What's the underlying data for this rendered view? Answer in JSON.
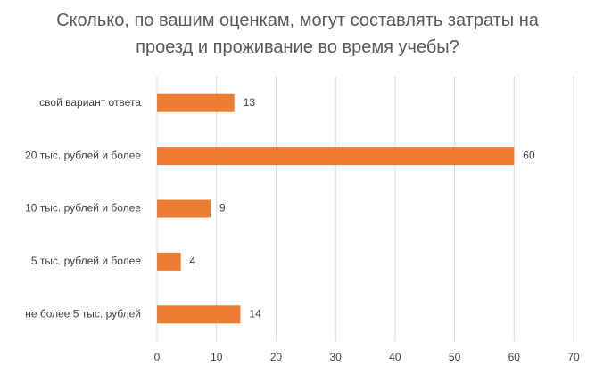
{
  "chart_data": {
    "type": "hbar",
    "title": "Сколько, по вашим оценкам, могут составлять затраты на проезд и проживание во время учебы?",
    "categories": [
      "свой вариант ответа",
      "20 тыс. рублей и более",
      "10 тыс. рублей и более",
      "5 тыс. рублей и более",
      "не более 5 тыс. рублей"
    ],
    "values": [
      13,
      60,
      9,
      4,
      14
    ],
    "color": "#ed7d31",
    "xlim": [
      0,
      70
    ],
    "xticks": [
      0,
      10,
      20,
      30,
      40,
      50,
      60,
      70
    ],
    "grid": true
  }
}
